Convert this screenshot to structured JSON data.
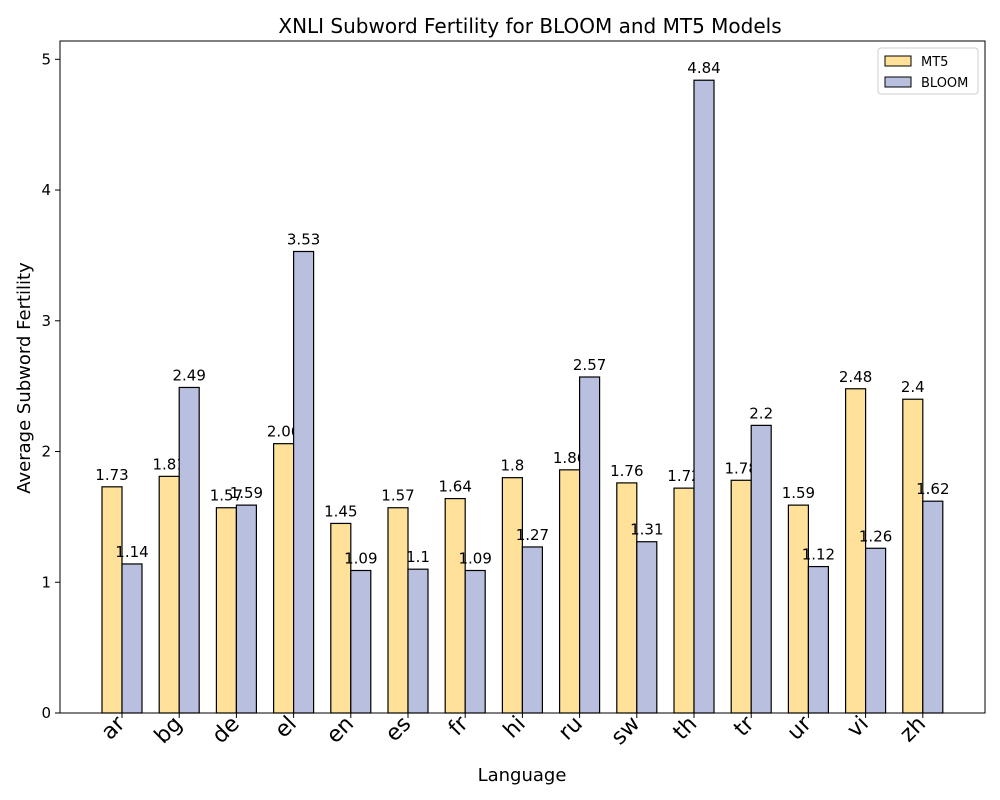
{
  "chart_data": {
    "type": "bar",
    "title": "XNLI Subword Fertility for BLOOM and MT5 Models",
    "xlabel": "Language",
    "ylabel": "Average Subword Fertility",
    "categories": [
      "ar",
      "bg",
      "de",
      "el",
      "en",
      "es",
      "fr",
      "hi",
      "ru",
      "sw",
      "th",
      "tr",
      "ur",
      "vi",
      "zh"
    ],
    "series": [
      {
        "name": "MT5",
        "color": "#ffe199",
        "values": [
          1.73,
          1.81,
          1.57,
          2.06,
          1.45,
          1.57,
          1.64,
          1.8,
          1.86,
          1.76,
          1.72,
          1.78,
          1.59,
          2.48,
          2.4
        ]
      },
      {
        "name": "BLOOM",
        "color": "#b9bfdf",
        "values": [
          1.14,
          2.49,
          1.59,
          3.53,
          1.09,
          1.1,
          1.09,
          1.27,
          2.57,
          1.31,
          4.84,
          2.2,
          1.12,
          1.26,
          1.62
        ]
      }
    ],
    "ylim": [
      0,
      5.14
    ],
    "yticks": [
      0,
      1,
      2,
      3,
      4,
      5
    ],
    "legend": "top-right",
    "grid": false,
    "xtick_rotation": 45
  }
}
